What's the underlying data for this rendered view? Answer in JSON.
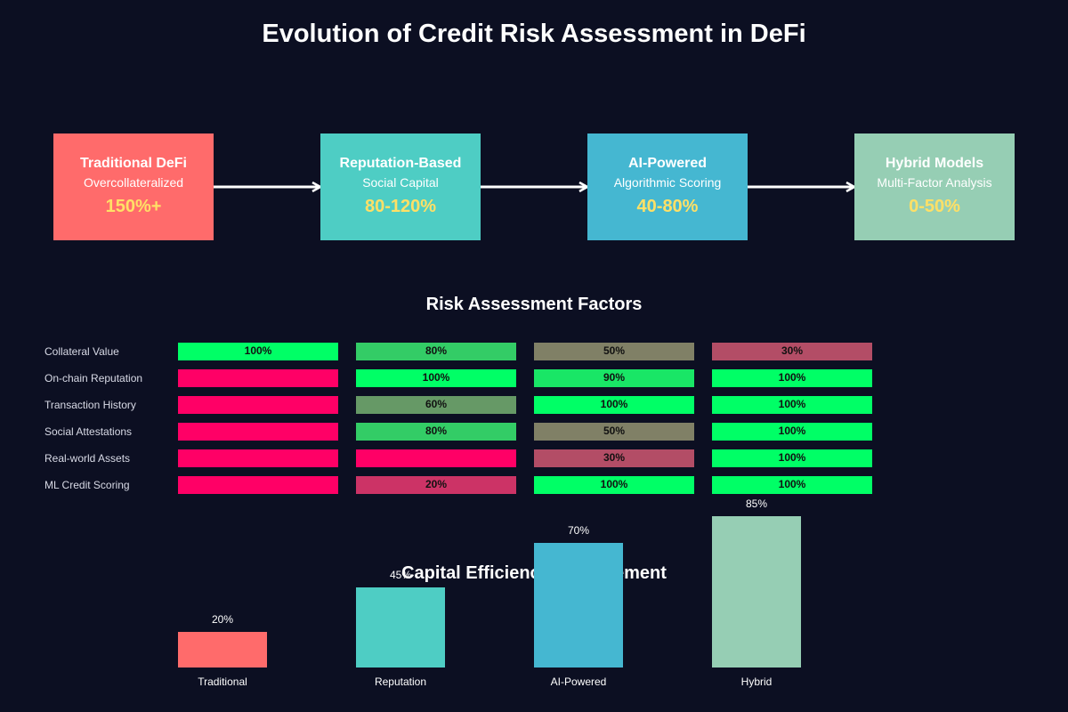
{
  "title": "Evolution of Credit Risk Assessment in DeFi",
  "stages": [
    {
      "name": "Traditional DeFi",
      "subtitle": "Overcollateralized",
      "value": "150%+",
      "color": "#ff6b6b"
    },
    {
      "name": "Reputation-Based",
      "subtitle": "Social Capital",
      "value": "80-120%",
      "color": "#4ecdc4"
    },
    {
      "name": "AI-Powered",
      "subtitle": "Algorithmic Scoring",
      "value": "40-80%",
      "color": "#45b7d1"
    },
    {
      "name": "Hybrid Models",
      "subtitle": "Multi-Factor Analysis",
      "value": "0-50%",
      "color": "#96ceb4"
    }
  ],
  "factors_title": "Risk Assessment Factors",
  "factors": [
    {
      "label": "Collateral Value",
      "values": [
        100,
        80,
        50,
        30
      ]
    },
    {
      "label": "On-chain Reputation",
      "values": [
        0,
        100,
        90,
        100
      ]
    },
    {
      "label": "Transaction History",
      "values": [
        0,
        60,
        100,
        100
      ]
    },
    {
      "label": "Social Attestations",
      "values": [
        0,
        80,
        50,
        100
      ]
    },
    {
      "label": "Real-world Assets",
      "values": [
        0,
        0,
        30,
        100
      ]
    },
    {
      "label": "ML Credit Scoring",
      "values": [
        0,
        20,
        100,
        100
      ]
    }
  ],
  "colors": {
    "background": "#0c0f22",
    "accent_value": "#ffe066",
    "factor_high": "#00ff66",
    "factor_low": "#ff0066"
  },
  "chart_data": {
    "type": "bar",
    "title": "Capital Efficiency Improvement",
    "categories": [
      "Traditional",
      "Reputation",
      "AI-Powered",
      "Hybrid"
    ],
    "values": [
      20,
      45,
      70,
      85
    ],
    "value_labels": [
      "20%",
      "45%",
      "70%",
      "85%"
    ],
    "colors": [
      "#ff6b6b",
      "#4ecdc4",
      "#45b7d1",
      "#96ceb4"
    ],
    "ylim": [
      0,
      100
    ]
  }
}
